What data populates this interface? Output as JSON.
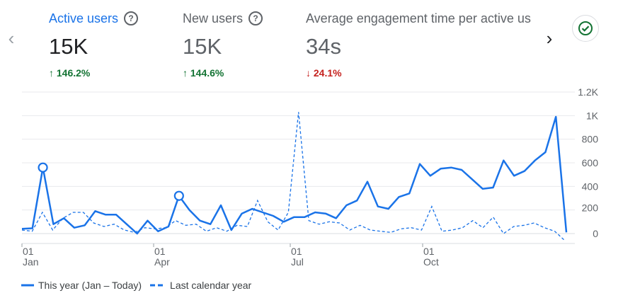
{
  "metrics": [
    {
      "label": "Active users",
      "value": "15K",
      "delta": "146.2%",
      "direction": "up"
    },
    {
      "label": "New users",
      "value": "15K",
      "delta": "144.6%",
      "direction": "up"
    },
    {
      "label": "Average engagement time per active us",
      "value": "34s",
      "delta": "24.1%",
      "direction": "down"
    }
  ],
  "icons": {
    "prev": "chevron-left-icon",
    "next": "chevron-right-icon",
    "status": "check-circle-icon",
    "help": "help-circle-icon"
  },
  "colors": {
    "accent": "#1a73e8",
    "up": "#137333",
    "down": "#c5221f",
    "grid": "#e8eaed"
  },
  "chart_data": {
    "type": "line",
    "x_ticks": [
      {
        "day": "01",
        "month": "Jan"
      },
      {
        "day": "01",
        "month": "Apr"
      },
      {
        "day": "01",
        "month": "Jul"
      },
      {
        "day": "01",
        "month": "Oct"
      }
    ],
    "y_ticks": [
      "1.2K",
      "1K",
      "800",
      "600",
      "400",
      "200",
      "0"
    ],
    "ylim": [
      0,
      1200
    ],
    "grid": true,
    "legend_position": "bottom-left",
    "series": [
      {
        "name": "This year (Jan – Today)",
        "style": "solid",
        "values": [
          40,
          45,
          560,
          80,
          130,
          50,
          70,
          190,
          160,
          160,
          80,
          0,
          110,
          20,
          60,
          320,
          200,
          110,
          80,
          240,
          30,
          170,
          210,
          180,
          150,
          100,
          140,
          140,
          180,
          170,
          130,
          240,
          280,
          440,
          230,
          210,
          310,
          340,
          590,
          490,
          550,
          560,
          540,
          460,
          380,
          390,
          620,
          490,
          530,
          620,
          690,
          990,
          10
        ],
        "markers": [
          2,
          15
        ]
      },
      {
        "name": "Last calendar year",
        "style": "dashed",
        "values": [
          30,
          20,
          180,
          30,
          130,
          180,
          180,
          90,
          60,
          80,
          30,
          10,
          50,
          40,
          50,
          110,
          70,
          80,
          20,
          50,
          20,
          70,
          60,
          280,
          100,
          30,
          180,
          1030,
          110,
          80,
          100,
          90,
          30,
          70,
          30,
          20,
          10,
          40,
          50,
          30,
          230,
          20,
          30,
          50,
          110,
          50,
          140,
          0,
          60,
          70,
          90,
          50,
          20,
          -60
        ]
      }
    ]
  },
  "legend": [
    {
      "label": "This year (Jan – Today)",
      "style": "solid"
    },
    {
      "label": "Last calendar year",
      "style": "dashed"
    }
  ]
}
